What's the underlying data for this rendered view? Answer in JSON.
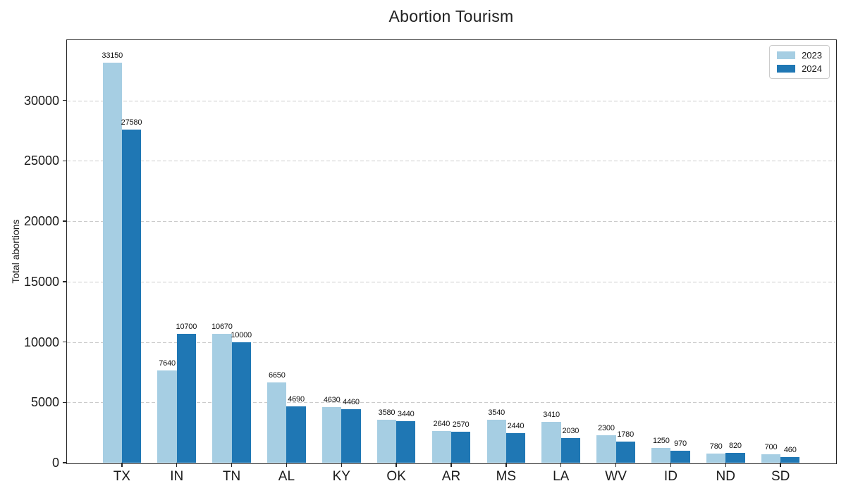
{
  "chart_data": {
    "type": "bar",
    "title": "Abortion Tourism",
    "xlabel": "",
    "ylabel": "Total abortions",
    "categories": [
      "TX",
      "IN",
      "TN",
      "AL",
      "KY",
      "OK",
      "AR",
      "MS",
      "LA",
      "WV",
      "ID",
      "ND",
      "SD"
    ],
    "series": [
      {
        "name": "2023",
        "color": "#a6cee3",
        "values": [
          33150,
          7640,
          10670,
          6650,
          4630,
          3580,
          2640,
          3540,
          3410,
          2300,
          1250,
          780,
          700
        ]
      },
      {
        "name": "2024",
        "color": "#1f77b4",
        "values": [
          27580,
          10700,
          10000,
          4690,
          4460,
          3440,
          2570,
          2440,
          2030,
          1780,
          970,
          820,
          460
        ]
      }
    ],
    "ylim": [
      0,
      35000
    ],
    "yticks": [
      0,
      5000,
      10000,
      15000,
      20000,
      25000,
      30000
    ],
    "grid": true,
    "grid_style": "dashed",
    "legend_position": "upper right",
    "bar_value_labels": true
  },
  "colors": {
    "background": "#ffffff",
    "spine": "#262626",
    "gridline": "#cbcbcb",
    "text": "#1a1a1a"
  }
}
